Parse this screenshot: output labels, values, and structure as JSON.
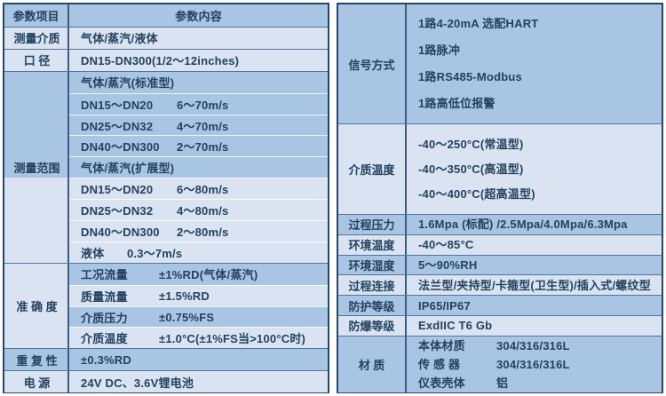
{
  "colors": {
    "row_blue": "#a8c5e3",
    "row_light": "#d9e3f1",
    "outer_border": "#25466d",
    "section_line": "#53759c",
    "column_divider": "#3d5c85",
    "text": "#24425f",
    "page_background": "#ffffff"
  },
  "left_table": {
    "header": {
      "col1": "参数项目",
      "col2": "参数内容"
    },
    "sections": [
      {
        "key": "measuring-medium",
        "label": "测量介质",
        "label_tone": "light",
        "rows": [
          {
            "tone": "light",
            "text": "气体/蒸汽/液体"
          }
        ]
      },
      {
        "key": "diameter",
        "label": "口 径",
        "label_tone": "light",
        "rows": [
          {
            "tone": "light",
            "text": "DN15-DN300(1/2～12inches)"
          }
        ]
      },
      {
        "key": "measuring-range",
        "label": "测量范围",
        "label_tone": "band",
        "rows": [
          {
            "tone": "blue",
            "text": "气体/蒸汽(标准型)"
          },
          {
            "tone": "blue",
            "c1": "DN15～DN20",
            "c2": "6～70m/s",
            "w": "w1"
          },
          {
            "tone": "blue",
            "c1": "DN25～DN32",
            "c2": "4～70m/s",
            "w": "w1"
          },
          {
            "tone": "blue",
            "c1": "DN40～DN300",
            "c2": "2～70m/s",
            "w": "w1"
          },
          {
            "tone": "blue",
            "text": "气体/蒸汽(扩展型)"
          },
          {
            "tone": "light",
            "c1": "DN15～DN20",
            "c2": "6～80m/s",
            "w": "w1"
          },
          {
            "tone": "light",
            "c1": "DN25～DN32",
            "c2": "4～80m/s",
            "w": "w1"
          },
          {
            "tone": "light",
            "c1": "DN40～DN300",
            "c2": "2～80m/s",
            "w": "w1"
          },
          {
            "tone": "light",
            "c1": "液体",
            "c2": "0.3～7m/s",
            "w": "n1"
          }
        ]
      },
      {
        "key": "accuracy",
        "label": "准 确 度",
        "label_tone": "light",
        "rows": [
          {
            "tone": "blue",
            "c1": "工况流量",
            "c2": "±1%RD(气体/蒸汽)",
            "w": "w2"
          },
          {
            "tone": "light",
            "c1": "质量流量",
            "c2": "±1.5%RD",
            "w": "w2"
          },
          {
            "tone": "blue",
            "c1": "介质压力",
            "c2": "±0.75%FS",
            "w": "w2"
          },
          {
            "tone": "light",
            "c1": "介质温度",
            "c2": "±1.0°C(±1%FS当>100°C时)",
            "w": "w2"
          }
        ]
      },
      {
        "key": "repeatability",
        "label": "重 复 性",
        "label_tone": "blue",
        "rows": [
          {
            "tone": "blue",
            "text": "±0.3%RD"
          }
        ]
      },
      {
        "key": "power-supply",
        "label": "电 源",
        "label_tone": "light",
        "rows": [
          {
            "tone": "light",
            "text": "24V DC、3.6V锂电池"
          }
        ]
      }
    ]
  },
  "right_table": {
    "sections": [
      {
        "key": "signal-type",
        "label": "信号方式",
        "tone": "blue",
        "kind": "multi",
        "lines": [
          "1路4-20mA 选配HART",
          "1路脉冲",
          "1路RS485-Modbus",
          "1路高低位报警"
        ]
      },
      {
        "key": "medium-temperature",
        "label": "介质温度",
        "tone": "light",
        "kind": "multi",
        "lines": [
          "-40～250°C(常温型)",
          "-40～350°C(高温型)",
          "-40～400°C(超高温型)"
        ]
      },
      {
        "key": "process-pressure",
        "label": "过程压力",
        "tone": "blue",
        "kind": "single",
        "lines": [
          "1.6Mpa (标配) /2.5Mpa/4.0Mpa/6.3Mpa"
        ]
      },
      {
        "key": "ambient-temperature",
        "label": "环境温度",
        "tone": "light",
        "kind": "single",
        "lines": [
          "-40～85°C"
        ]
      },
      {
        "key": "ambient-humidity",
        "label": "环境湿度",
        "tone": "blue",
        "kind": "single",
        "lines": [
          "5～90%RH"
        ]
      },
      {
        "key": "process-connection",
        "label": "过程连接",
        "tone": "light",
        "kind": "single",
        "lines": [
          "法兰型/夹持型/卡箍型(卫生型)/插入式/螺纹型"
        ]
      },
      {
        "key": "protection-rating",
        "label": "防护等级",
        "tone": "blue",
        "kind": "single",
        "lines": [
          "IP65/IP67"
        ]
      },
      {
        "key": "explosion-proof-rating",
        "label": "防爆等级",
        "tone": "light",
        "kind": "single",
        "lines": [
          "ExdIIC T6 Gb"
        ]
      },
      {
        "key": "material",
        "label": "材 质",
        "tone": "blue",
        "kind": "pairs",
        "pairs": [
          {
            "c1": "本体材质",
            "c2": "304/316/316L"
          },
          {
            "c1": "传 感 器",
            "c2": "304/316/316L"
          },
          {
            "c1": "仪表壳体",
            "c2": "铝"
          }
        ]
      }
    ]
  }
}
